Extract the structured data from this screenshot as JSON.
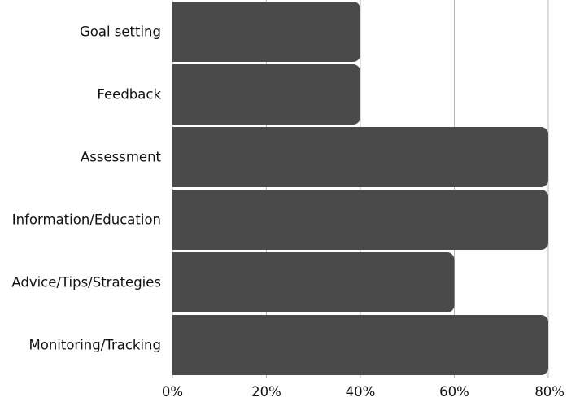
{
  "chart_data": {
    "type": "bar",
    "orientation": "horizontal",
    "categories": [
      "Goal setting",
      "Feedback",
      "Assessment",
      "Information/Education",
      "Advice/Tips/Strategies",
      "Monitoring/Tracking"
    ],
    "values": [
      40,
      40,
      80,
      80,
      60,
      80
    ],
    "xlim": [
      0,
      80
    ],
    "xticks": [
      0,
      20,
      40,
      60,
      80
    ],
    "xtick_labels": [
      "0%",
      "20%",
      "40%",
      "60%",
      "80%"
    ],
    "grid": true,
    "colors": {
      "bar": "#4a4a4a",
      "grid": "#b8b8b8"
    }
  }
}
